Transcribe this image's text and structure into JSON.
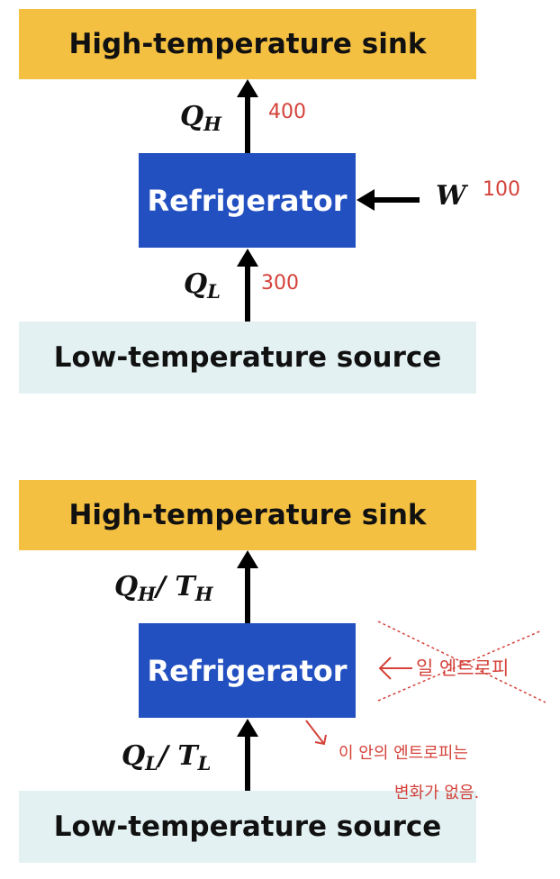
{
  "top": {
    "sink": "High-temperature sink",
    "refrigerator": "Refrigerator",
    "source": "Low-temperature source",
    "qh": {
      "sym": "Q",
      "sub": "H"
    },
    "ql": {
      "sym": "Q",
      "sub": "L"
    },
    "w": "W",
    "notes": {
      "qh": "400",
      "ql": "300",
      "w": "100"
    }
  },
  "bottom": {
    "sink": "High-temperature sink",
    "refrigerator": "Refrigerator",
    "source": "Low-temperature source",
    "qh": {
      "sym": "Q",
      "sub": "H",
      "sep": "/ ",
      "t": "T",
      "tsub": "H"
    },
    "ql": {
      "sym": "Q",
      "sub": "L",
      "sep": "/ ",
      "t": "T",
      "tsub": "L"
    },
    "notes": {
      "crossed": "일 엔트로피",
      "line1": "이 안의 엔트로피는",
      "line2": "변화가 없음."
    }
  },
  "colors": {
    "sink": "#f4c041",
    "source": "#e3f1f3",
    "refrigerator": "#2250c0",
    "handwriting": "#d4423a"
  }
}
